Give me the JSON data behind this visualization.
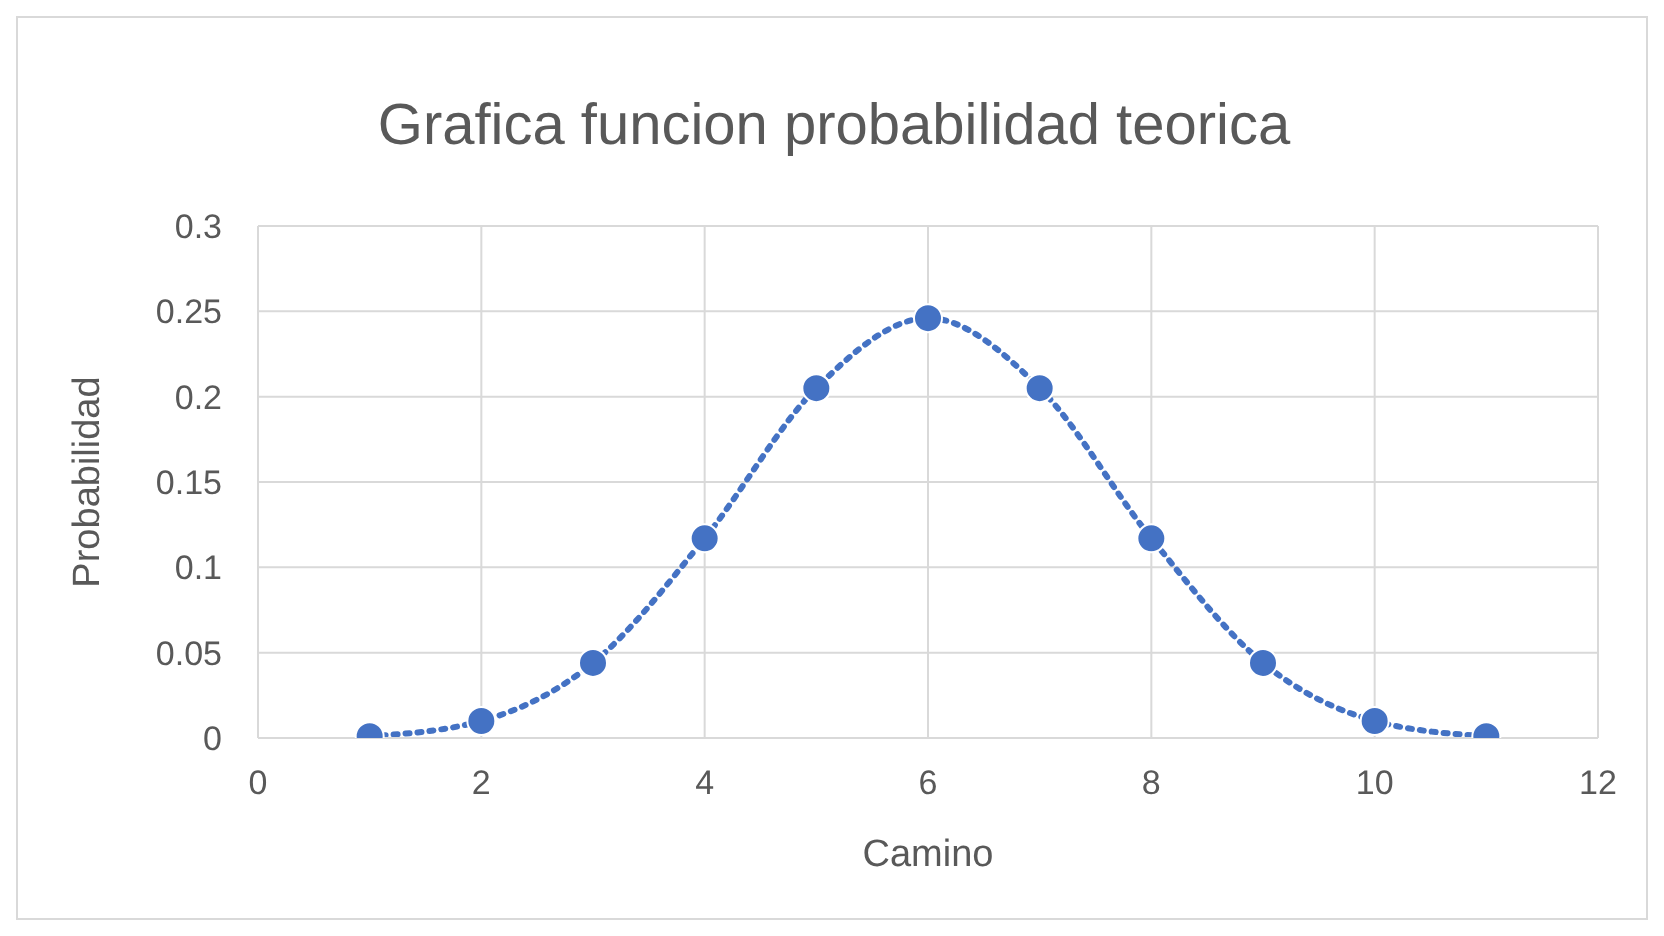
{
  "chart_data": {
    "type": "line",
    "title": "Grafica funcion probabilidad teorica",
    "xlabel": "Camino",
    "ylabel": "Probabilidad",
    "x": [
      1,
      2,
      3,
      4,
      5,
      6,
      7,
      8,
      9,
      10,
      11
    ],
    "series": [
      {
        "color": "#4472c4",
        "values": [
          0.001,
          0.01,
          0.044,
          0.117,
          0.205,
          0.246,
          0.205,
          0.117,
          0.044,
          0.01,
          0.001
        ]
      }
    ],
    "xlim": [
      0,
      12
    ],
    "xticks": [
      0,
      2,
      4,
      6,
      8,
      10,
      12
    ],
    "ylim": [
      0,
      0.3
    ],
    "yticks": [
      0,
      0.05,
      0.1,
      0.15,
      0.2,
      0.25,
      0.3
    ],
    "grid": true,
    "marker": "circle",
    "line_style": "dotted"
  }
}
